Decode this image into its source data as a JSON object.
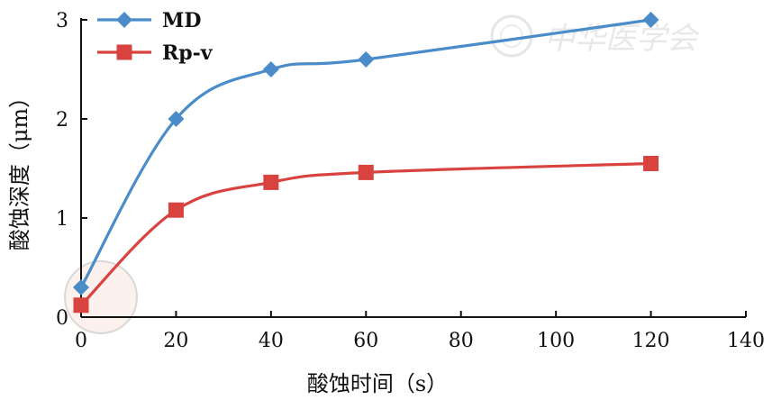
{
  "chart_data": {
    "type": "line",
    "x": [
      0,
      20,
      40,
      60,
      120
    ],
    "series": [
      {
        "name": "MD",
        "values": [
          0.3,
          2.0,
          2.5,
          2.6,
          3.0
        ],
        "color": "#4a8bc9",
        "marker": "diamond"
      },
      {
        "name": "Rp-v",
        "values": [
          0.12,
          1.08,
          1.36,
          1.46,
          1.55
        ],
        "color": "#d9433f",
        "marker": "square"
      }
    ],
    "xlabel": "酸蚀时间（s）",
    "ylabel": "酸蚀深度（μm）",
    "xlim": [
      0,
      140
    ],
    "ylim": [
      0,
      3
    ],
    "xticks": [
      "0",
      "20",
      "40",
      "60",
      "80",
      "100",
      "120",
      "140"
    ],
    "yticks": [
      "0",
      "1",
      "2",
      "3"
    ],
    "grid": false,
    "legend_position": "top-left",
    "watermark": "中华医学会"
  }
}
